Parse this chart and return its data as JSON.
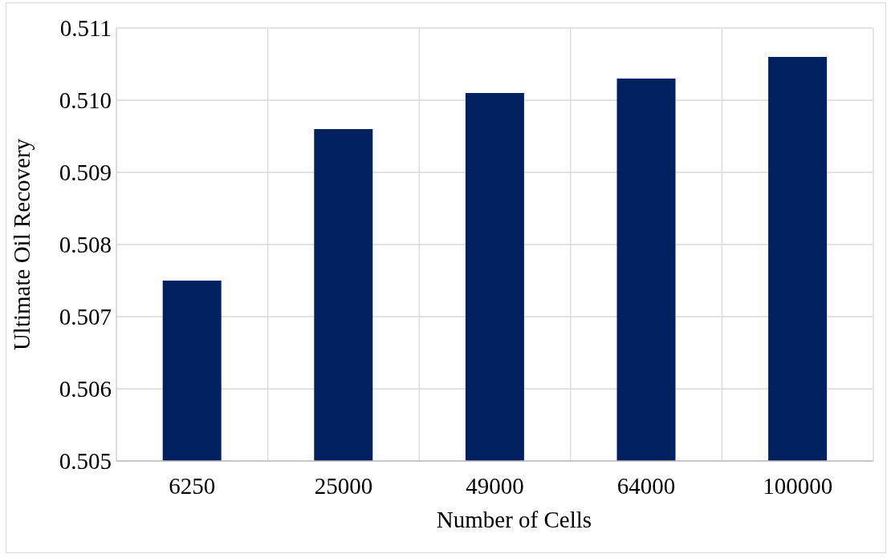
{
  "chart_data": {
    "type": "bar",
    "xlabel": "Number of Cells",
    "ylabel": "Ultimate Oil Recovery",
    "categories": [
      "6250",
      "25000",
      "49000",
      "64000",
      "100000"
    ],
    "values": [
      0.5075,
      0.5096,
      0.5101,
      0.5103,
      0.5106
    ],
    "color": "#002060",
    "ylim": [
      0.505,
      0.511
    ],
    "yticks": [
      0.505,
      0.506,
      0.507,
      0.508,
      0.509,
      {
        "value": 0.51,
        "label": "0.510"
      },
      0.511
    ],
    "grid": true
  }
}
